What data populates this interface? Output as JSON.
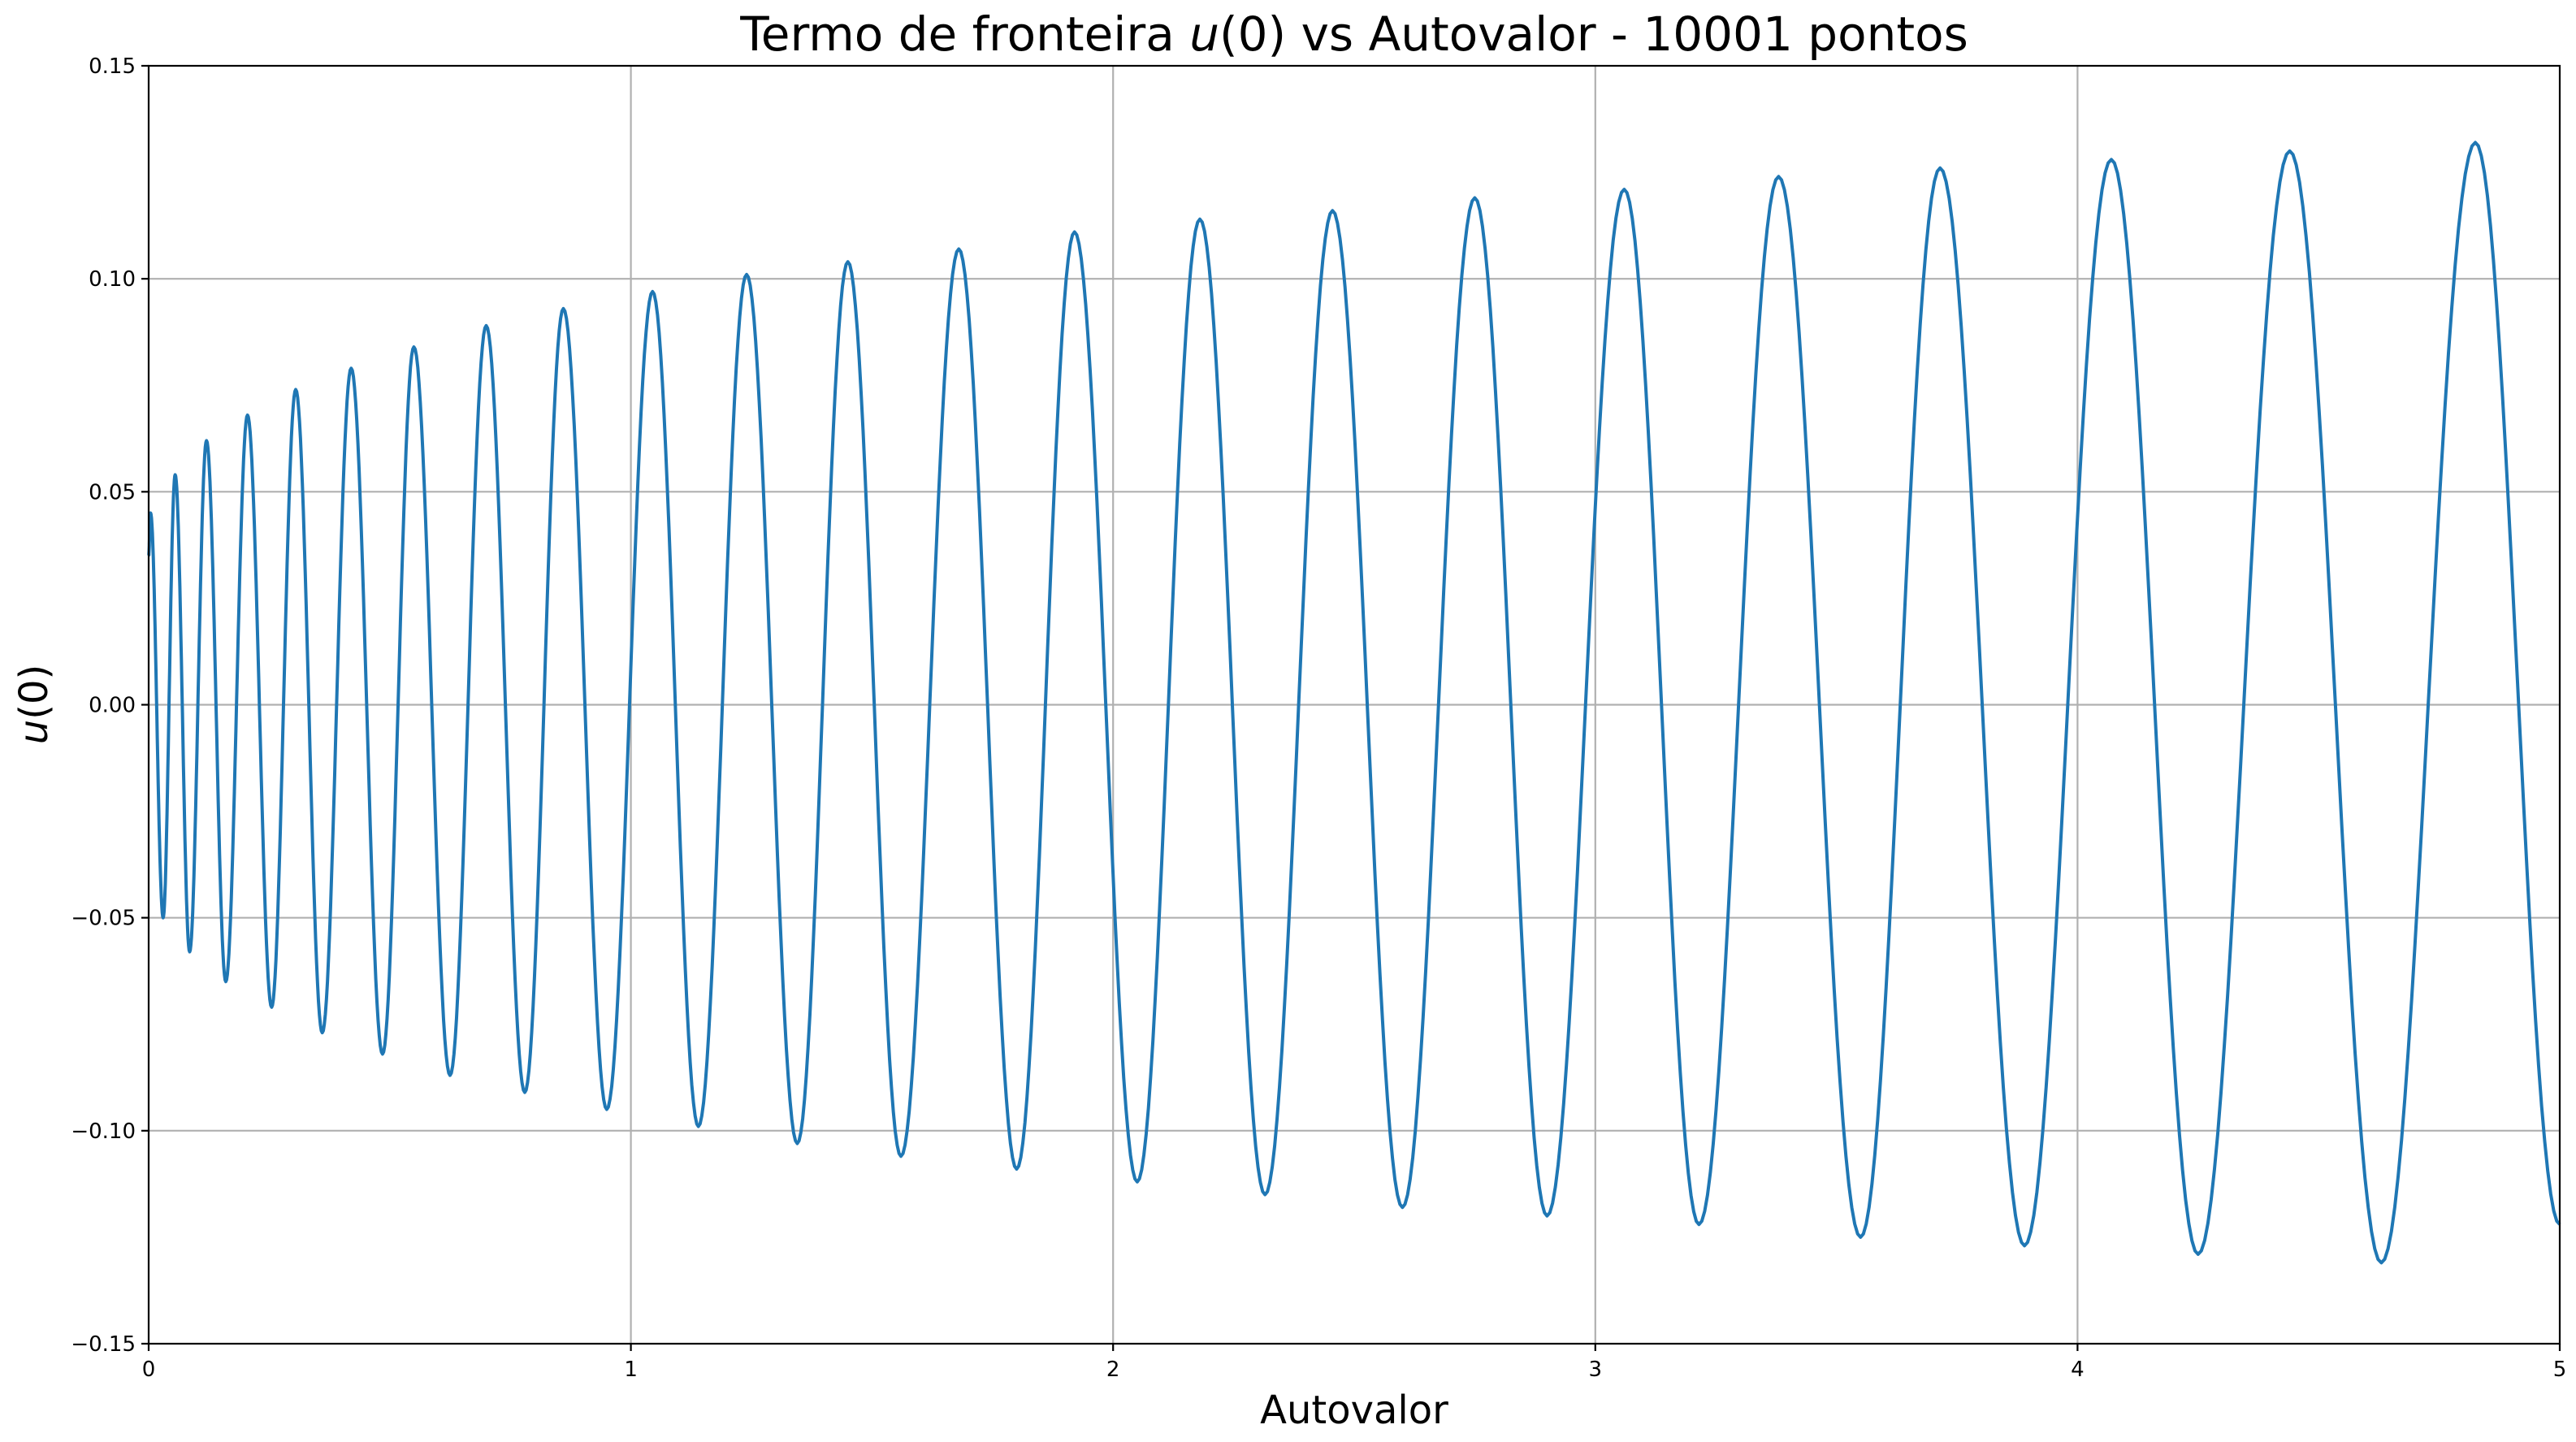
{
  "chart_data": {
    "type": "line",
    "title_prefix": "Termo de fronteira ",
    "title_symbol": "u",
    "title_suffix": "(0) vs Autovalor - 10001 pontos",
    "xlabel": "Autovalor",
    "ylabel_symbol": "u",
    "ylabel_suffix": "(0)",
    "xlim": [
      0,
      5
    ],
    "ylim": [
      -0.15,
      0.15
    ],
    "xticks": [
      0,
      1,
      2,
      3,
      4,
      5
    ],
    "xtick_labels": [
      "0",
      "1",
      "2",
      "3",
      "4",
      "5"
    ],
    "yticks": [
      -0.15,
      -0.1,
      -0.05,
      0.0,
      0.05,
      0.1,
      0.15
    ],
    "ytick_labels": [
      "−0.15",
      "−0.10",
      "−0.05",
      "0.00",
      "0.05",
      "0.10",
      "0.15"
    ],
    "grid": true,
    "color": "#1f77b4",
    "series": [
      {
        "extrema": [
          [
            0.0,
            0.035
          ],
          [
            0.004,
            0.045
          ],
          [
            0.03,
            -0.05
          ],
          [
            0.055,
            0.054
          ],
          [
            0.085,
            -0.058
          ],
          [
            0.12,
            0.062
          ],
          [
            0.16,
            -0.065
          ],
          [
            0.205,
            0.068
          ],
          [
            0.255,
            -0.071
          ],
          [
            0.305,
            0.074
          ],
          [
            0.36,
            -0.077
          ],
          [
            0.42,
            0.079
          ],
          [
            0.485,
            -0.082
          ],
          [
            0.55,
            0.084
          ],
          [
            0.625,
            -0.087
          ],
          [
            0.7,
            0.089
          ],
          [
            0.78,
            -0.091
          ],
          [
            0.86,
            0.093
          ],
          [
            0.95,
            -0.095
          ],
          [
            1.045,
            0.097
          ],
          [
            1.14,
            -0.099
          ],
          [
            1.24,
            0.101
          ],
          [
            1.345,
            -0.103
          ],
          [
            1.45,
            0.104
          ],
          [
            1.56,
            -0.106
          ],
          [
            1.68,
            0.107
          ],
          [
            1.8,
            -0.109
          ],
          [
            1.92,
            0.111
          ],
          [
            2.05,
            -0.112
          ],
          [
            2.18,
            0.114
          ],
          [
            2.315,
            -0.115
          ],
          [
            2.455,
            0.116
          ],
          [
            2.6,
            -0.118
          ],
          [
            2.75,
            0.119
          ],
          [
            2.9,
            -0.12
          ],
          [
            3.06,
            0.121
          ],
          [
            3.215,
            -0.122
          ],
          [
            3.38,
            0.124
          ],
          [
            3.55,
            -0.125
          ],
          [
            3.715,
            0.126
          ],
          [
            3.89,
            -0.127
          ],
          [
            4.07,
            0.128
          ],
          [
            4.25,
            -0.129
          ],
          [
            4.44,
            0.13
          ],
          [
            4.63,
            -0.131
          ],
          [
            4.825,
            0.132
          ],
          [
            5.0,
            -0.122
          ]
        ]
      }
    ]
  }
}
